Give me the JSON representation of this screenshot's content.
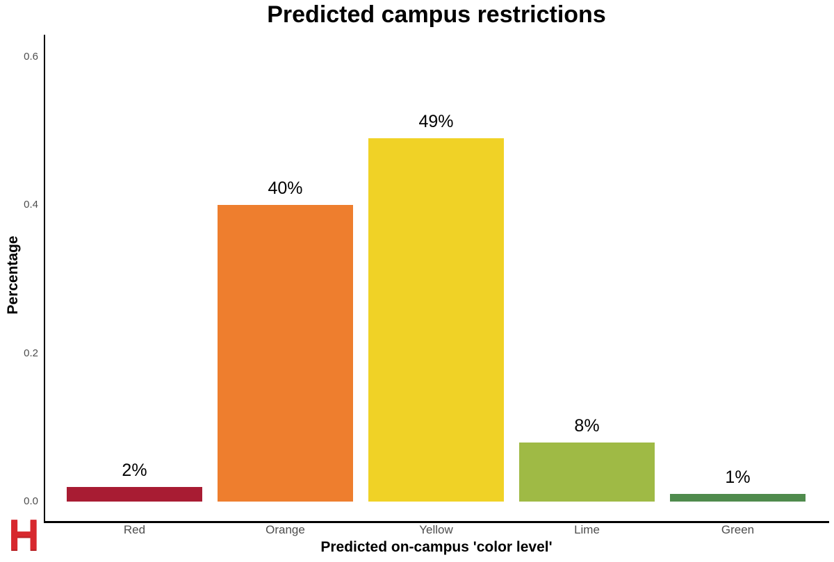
{
  "chart_data": {
    "type": "bar",
    "title": "Predicted campus restrictions",
    "xlabel": "Predicted on-campus 'color level'",
    "ylabel": "Percentage",
    "categories": [
      "Red",
      "Orange",
      "Yellow",
      "Lime",
      "Green"
    ],
    "values": [
      0.02,
      0.4,
      0.49,
      0.08,
      0.01
    ],
    "bar_labels": [
      "2%",
      "40%",
      "49%",
      "8%",
      "1%"
    ],
    "bar_colors": [
      "#A81C33",
      "#EE7E2E",
      "#F0D226",
      "#9FBA45",
      "#4F8B4D"
    ],
    "yticks": [
      0.0,
      0.2,
      0.4,
      0.6
    ],
    "ytick_labels": [
      "0.0",
      "0.2",
      "0.4",
      "0.6"
    ],
    "ylim": [
      0,
      0.63
    ],
    "grid": false,
    "legend": false,
    "axis_color": "#000000",
    "tick_text_color": "#4D4D4D"
  },
  "branding": {
    "logo_letter": "H",
    "logo_color": "#D7282E"
  }
}
